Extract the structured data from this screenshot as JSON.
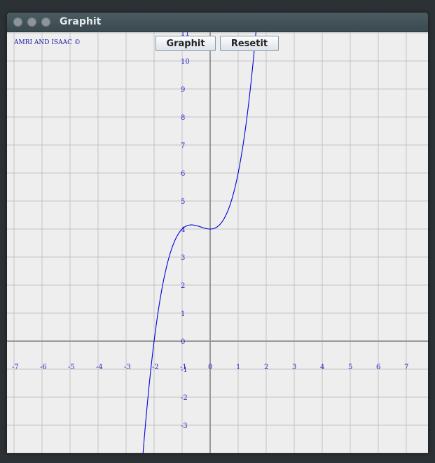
{
  "window": {
    "title": "Graphit"
  },
  "toolbar": {
    "graph_label": "Graphit",
    "reset_label": "Resetit"
  },
  "plot": {
    "copyright": "AMRI AND ISAAC ©",
    "x_range": [
      -7.5,
      7.5
    ],
    "y_range": [
      -4,
      11
    ],
    "x_ticks": [
      "-7",
      "-6",
      "-5",
      "-4",
      "-3",
      "-2",
      "-1",
      "0",
      "1",
      "2",
      "3",
      "4",
      "5",
      "6",
      "7"
    ],
    "y_ticks": [
      "11",
      "10",
      "9",
      "8",
      "7",
      "6",
      "5",
      "4",
      "3",
      "2",
      "1",
      "0",
      "-1",
      "-2",
      "-3"
    ],
    "grid": true,
    "curve_color": "#0000dd",
    "grid_color": "#c4c4c4",
    "axis_color": "#999999",
    "label_color": "#2a2acc"
  }
}
